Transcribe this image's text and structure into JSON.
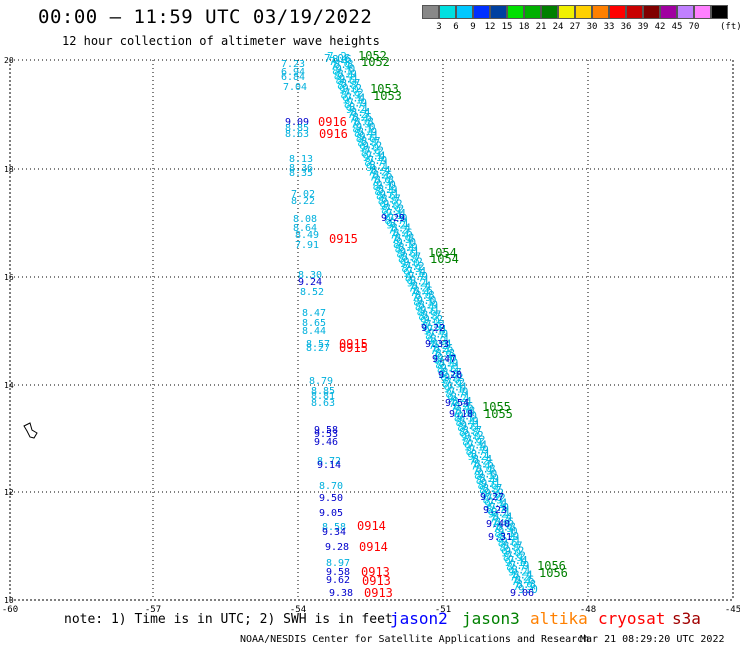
{
  "header": {
    "title": "00:00 – 11:59 UTC 03/19/2022",
    "subtitle": "12 hour collection of altimeter wave heights"
  },
  "colorbar": {
    "colors": [
      "#888888",
      "#00e0e0",
      "#00c8ff",
      "#0030ff",
      "#0040a0",
      "#00e000",
      "#00b000",
      "#008000",
      "#f0f000",
      "#ffd000",
      "#ff8000",
      "#ff0000",
      "#c80000",
      "#800000",
      "#a000a0",
      "#c080ff",
      "#ff80ff",
      "#000000"
    ],
    "labels": [
      "3",
      "6",
      "9",
      "12",
      "15",
      "18",
      "21",
      "24",
      "27",
      "30",
      "33",
      "36",
      "39",
      "42",
      "45",
      "70"
    ],
    "unit": "(ft)"
  },
  "axes": {
    "x_ticks": [
      "-60",
      "-57",
      "-54",
      "-51",
      "-48",
      "-45"
    ],
    "y_ticks": [
      "10",
      "12",
      "14",
      "16",
      "18",
      "20"
    ]
  },
  "tracks": {
    "west_values": [
      "7.23",
      "6.94",
      "6.84",
      "7.04",
      "9.09",
      "8.85",
      "8.63",
      "8.13",
      "8.36",
      "8.35",
      "7.02",
      "8.22",
      "8.08",
      "8.64",
      "8.49",
      "7.91",
      "8.30",
      "9.24",
      "8.52",
      "8.47",
      "8.65",
      "8.44",
      "8.57",
      "8.27",
      "8.79",
      "8.85",
      "8.81",
      "8.63",
      "9.58",
      "9.53",
      "9.46",
      "8.72",
      "9.14",
      "8.70",
      "9.50",
      "9.05",
      "8.58",
      "9.34",
      "9.28",
      "8.97",
      "9.58",
      "9.62",
      "9.38"
    ],
    "west_labels": [
      "0916",
      "0916",
      "0915",
      "0915",
      "0915",
      "0914",
      "0914",
      "0913",
      "0913",
      "0913"
    ],
    "east_start": "7.06",
    "east_values": [
      "9.29",
      "9.22",
      "9.33",
      "9.47",
      "9.28",
      "9.54",
      "9.18",
      "9.27",
      "9.23",
      "9.40",
      "9.31",
      "9.06"
    ],
    "east_labels": [
      "1052",
      "1052",
      "1053",
      "1053",
      "1054",
      "1054",
      "1055",
      "1055",
      "1056",
      "1056"
    ]
  },
  "footer": {
    "note": "note: 1) Time is in UTC; 2) SWH is in feet",
    "legend": [
      {
        "name": "jason2",
        "color": "#0000ff"
      },
      {
        "name": "jason3",
        "color": "#008000"
      },
      {
        "name": "altika",
        "color": "#ff8000"
      },
      {
        "name": "cryosat",
        "color": "#ff0000"
      },
      {
        "name": "s3a",
        "color": "#a00000"
      }
    ],
    "credit": "NOAA/NESDIS Center for Satellite Applications and Research",
    "timestamp": "Mar 21 08:29:20 UTC 2022"
  }
}
